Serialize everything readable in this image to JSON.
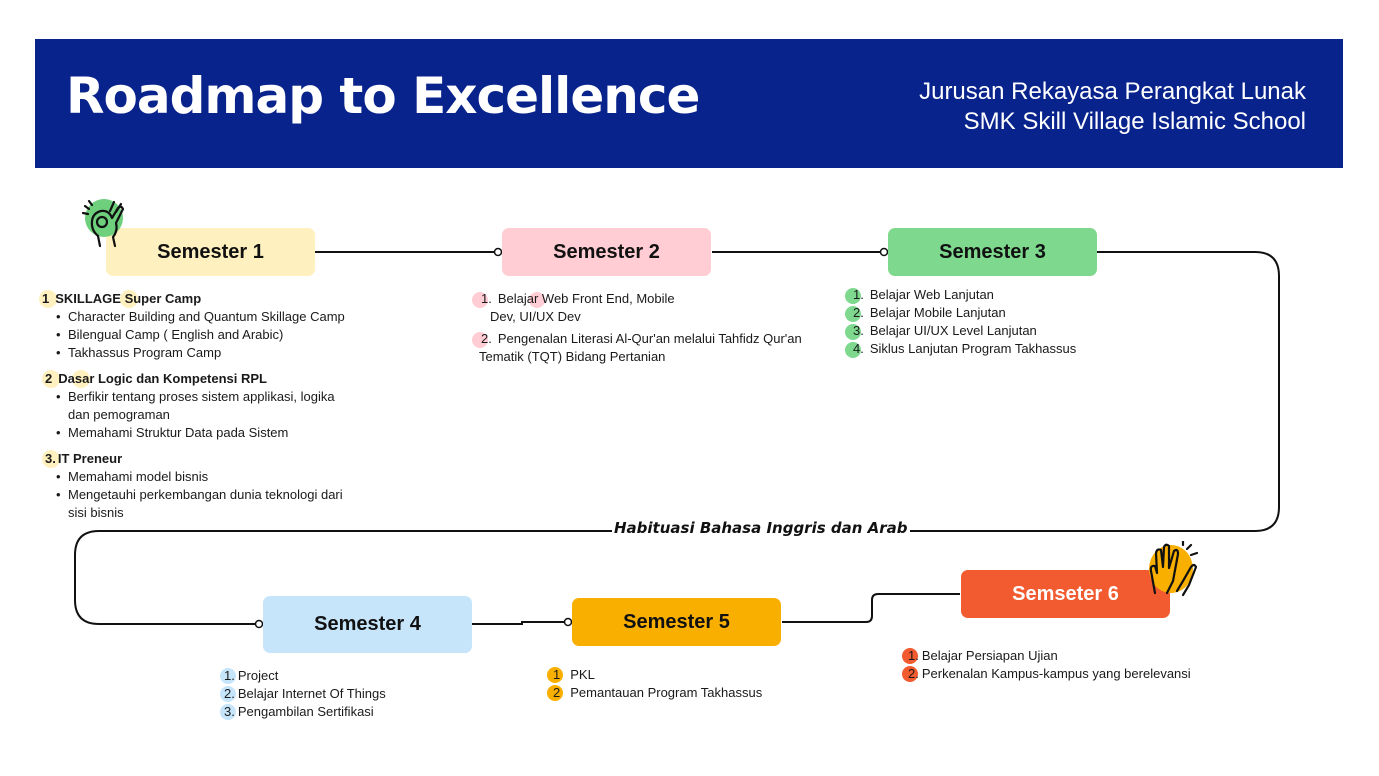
{
  "header": {
    "title": "Roadmap to Excellence",
    "subtitle_line1": "Jurusan Rekayasa Perangkat Lunak",
    "subtitle_line2": "SMK Skill Village Islamic School",
    "background": "#08238c"
  },
  "banner": "Habituasi Bahasa Inggris dan Arab",
  "semesters": [
    {
      "label": "Semester 1",
      "color": "#fff1bf"
    },
    {
      "label": "Semester 2",
      "color": "#ffcdd3"
    },
    {
      "label": "Semester 3",
      "color": "#7ed98f"
    },
    {
      "label": "Semester 4",
      "color": "#c6e5fb"
    },
    {
      "label": "Semester 5",
      "color": "#f8af00"
    },
    {
      "label": "Semseter 6",
      "color": "#f25a2f",
      "text_color": "#ffffff"
    }
  ],
  "sem1": {
    "sections": [
      {
        "num": "1",
        "title": "SKILLAGE Super Camp",
        "bullets": [
          "Character Building and Quantum Skillage Camp",
          "Bilengual Camp ( English and Arabic)",
          "Takhassus Program Camp"
        ]
      },
      {
        "num": "2",
        "title": "Dasar Logic dan Kompetensi RPL",
        "bullets": [
          "Berfikir tentang proses sistem applikasi, logika",
          "dan pemograman",
          "Memahami Struktur Data pada Sistem"
        ]
      },
      {
        "num": "3.",
        "title": "IT Preneur",
        "bullets": [
          "Memahami model bisnis",
          "Mengetauhi perkembangan dunia teknologi dari",
          "sisi bisnis"
        ]
      }
    ]
  },
  "sem2": {
    "items": [
      {
        "num": "1.",
        "text": "Belajar Web Front End, Mobile",
        "cont": "Dev, UI/UX Dev"
      },
      {
        "num": "2.",
        "text": "Pengenalan Literasi Al-Qur'an melalui Tahfidz Qur'an",
        "cont": "Tematik (TQT) Bidang Pertanian"
      }
    ]
  },
  "sem3": {
    "items": [
      {
        "num": "1.",
        "text": "Belajar Web  Lanjutan"
      },
      {
        "num": "2.",
        "text": "Belajar Mobile Lanjutan"
      },
      {
        "num": "3.",
        "text": "Belajar UI/UX Level Lanjutan"
      },
      {
        "num": "4.",
        "text": "Siklus Lanjutan Program Takhassus"
      }
    ]
  },
  "sem4": {
    "items": [
      {
        "num": "1.",
        "text": "Project"
      },
      {
        "num": "2.",
        "text": "Belajar Internet Of Things"
      },
      {
        "num": "3.",
        "text": "Pengambilan Sertifikasi"
      }
    ]
  },
  "sem5": {
    "items": [
      {
        "num": "1",
        "text": "PKL"
      },
      {
        "num": "2",
        "text": "Pemantauan Program Takhassus"
      }
    ]
  },
  "sem6": {
    "items": [
      {
        "num": "1.",
        "text": "Belajar Persiapan Ujian"
      },
      {
        "num": "2.",
        "text": "Perkenalan Kampus-kampus yang berelevansi"
      }
    ]
  },
  "icons": [
    "ok-hand-icon",
    "high-five-icon"
  ]
}
